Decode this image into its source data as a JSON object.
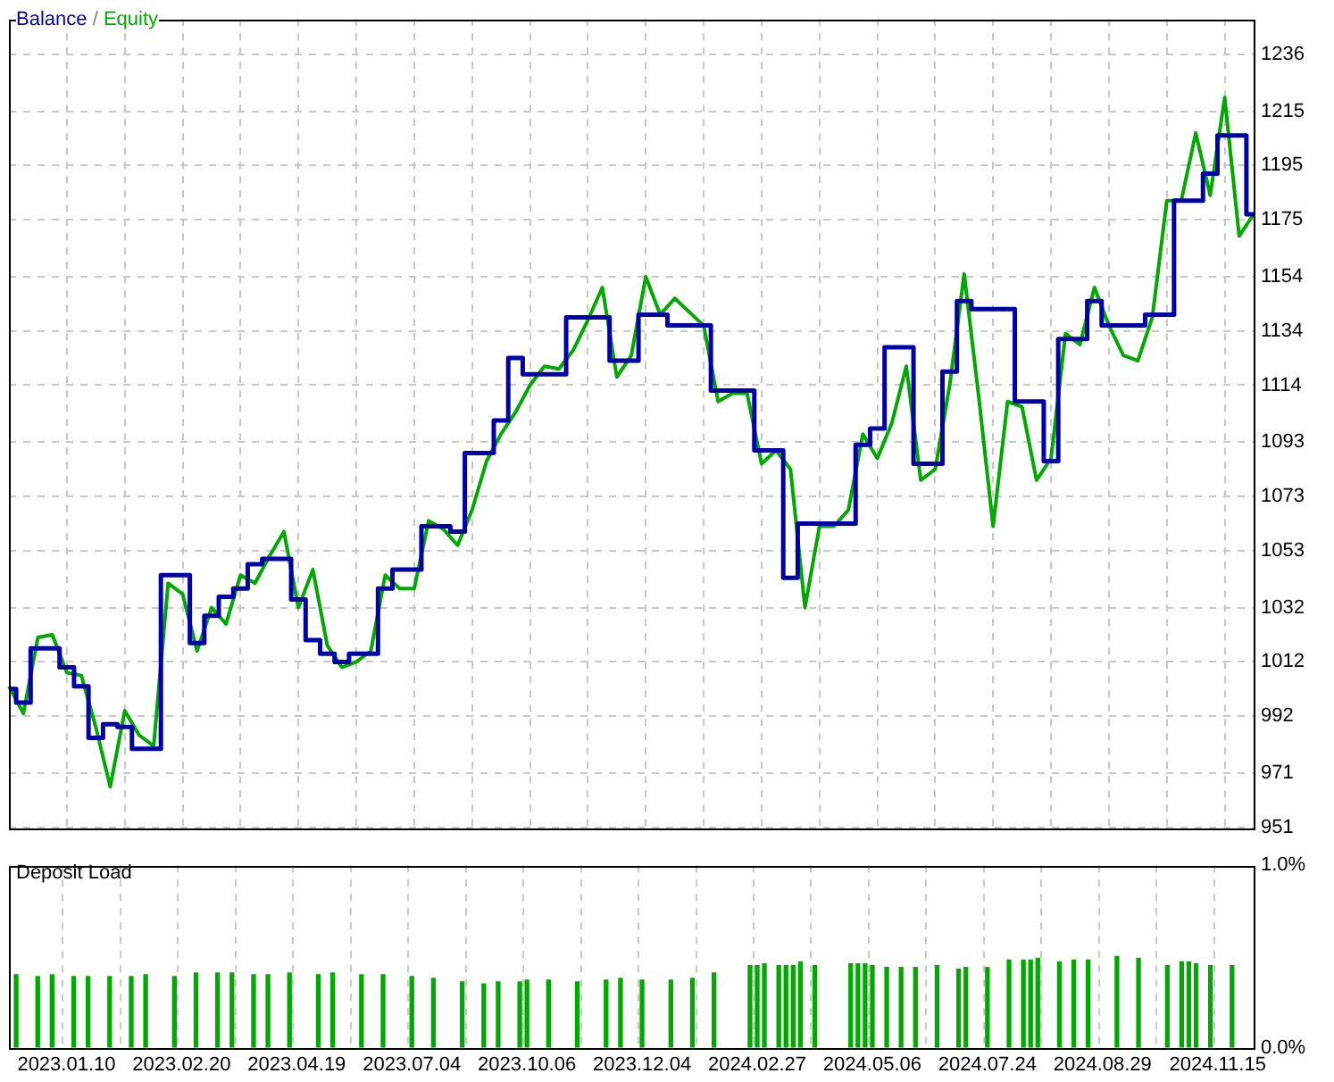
{
  "chart_data": [
    {
      "type": "line",
      "legend": "top left",
      "grid": true,
      "tick_labels": "y",
      "marker": "none",
      "annotations": [
        "/"
      ],
      "categories": [
        null,
        null,
        null,
        null,
        null,
        null,
        null,
        null,
        null,
        null,
        null,
        null,
        null,
        null,
        null,
        null,
        null,
        null,
        null,
        null,
        null,
        null,
        null,
        null,
        null,
        null,
        null,
        null,
        null,
        null,
        null,
        null,
        null,
        null,
        null,
        null,
        null,
        null,
        null,
        null,
        null,
        null,
        null,
        null,
        null,
        null,
        null,
        null,
        null,
        null,
        null,
        null,
        null,
        null,
        null,
        null,
        null,
        null,
        null,
        null,
        null,
        null,
        null,
        null,
        null,
        null,
        null,
        null,
        null,
        null,
        null,
        null,
        null,
        null,
        null,
        null,
        null,
        null,
        null,
        null,
        null,
        null,
        null,
        null,
        null,
        null,
        null
      ],
      "ylim": [
        951,
        1249
      ],
      "yticks": [
        951,
        971,
        992,
        1012,
        1032,
        1053,
        1073,
        1093,
        1114,
        1134,
        1154,
        1175,
        1195,
        1215,
        1236
      ],
      "series": [
        {
          "name": "Balance",
          "type": "step",
          "color": "#0000a8",
          "values": [
            1002,
            997,
            1017,
            1017,
            1010,
            1003,
            984,
            989,
            988,
            980,
            980,
            1044,
            1044,
            1019,
            1029,
            1036,
            1039,
            1048,
            1050,
            1050,
            1035,
            1020,
            1015,
            1012,
            1015,
            1015,
            1039,
            1046,
            1046,
            1062,
            1062,
            1060,
            1089,
            1089,
            1101,
            1124,
            1118,
            1118,
            1118,
            1139,
            1139,
            1139,
            1123,
            1123,
            1140,
            1140,
            1136,
            1136,
            1136,
            1112,
            1112,
            1112,
            1090,
            1090,
            1043,
            1063,
            1063,
            1063,
            1063,
            1092,
            1098,
            1128,
            1128,
            1085,
            1085,
            1119,
            1145,
            1142,
            1142,
            1142,
            1108,
            1108,
            1086,
            1131,
            1131,
            1145,
            1136,
            1136,
            1136,
            1140,
            1140,
            1182,
            1182,
            1192,
            1206,
            1206,
            1177
          ]
        },
        {
          "name": "Equity",
          "type": "line",
          "color": "#00a800",
          "values": [
            1003,
            993,
            1021,
            1022,
            1008,
            1007,
            988,
            966,
            994,
            985,
            981,
            1041,
            1037,
            1016,
            1032,
            1026,
            1044,
            1041,
            1051,
            1060,
            1032,
            1046,
            1018,
            1010,
            1012,
            1016,
            1044,
            1039,
            1039,
            1064,
            1061,
            1055,
            1068,
            1086,
            1096,
            1104,
            1114,
            1121,
            1120,
            1127,
            1138,
            1150,
            1117,
            1125,
            1154,
            1140,
            1146,
            1141,
            1136,
            1108,
            1111,
            1111,
            1085,
            1090,
            1083,
            1032,
            1062,
            1062,
            1068,
            1096,
            1087,
            1100,
            1121,
            1079,
            1083,
            1114,
            1155,
            1110,
            1062,
            1108,
            1106,
            1079,
            1087,
            1133,
            1129,
            1150,
            1136,
            1125,
            1123,
            1139,
            1182,
            1182,
            1207,
            1184,
            1220,
            1169,
            1177
          ]
        }
      ]
    },
    {
      "type": "bar",
      "title": "Deposit Load",
      "grid": "x",
      "color": "#00a800",
      "categories": [
        null,
        null,
        null,
        null,
        null,
        null,
        null,
        null,
        "2023.01.10",
        null,
        null,
        null,
        null,
        null,
        null,
        null,
        null,
        null,
        null,
        null,
        null,
        null,
        null,
        null,
        "2023.02.20",
        null,
        null,
        null,
        null,
        null,
        null,
        null,
        null,
        null,
        null,
        null,
        null,
        null,
        null,
        null,
        "2023.04.19",
        null,
        null,
        null,
        null,
        null,
        null,
        null,
        null,
        null,
        null,
        null,
        null,
        null,
        null,
        null,
        "2023.07.04",
        null,
        null,
        null,
        null,
        null,
        null,
        null,
        null,
        null,
        null,
        null,
        null,
        null,
        null,
        null,
        "2023.10.06",
        null,
        null,
        null,
        null,
        null,
        null,
        null,
        null,
        null,
        null,
        null,
        null,
        null,
        null,
        null,
        "2023.12.04",
        null,
        null,
        null,
        null,
        null,
        null,
        null,
        null,
        null,
        null,
        null,
        null,
        null,
        null,
        null,
        "2024.02.27",
        null,
        null,
        null,
        null,
        null,
        null,
        null,
        null,
        null,
        null,
        null,
        null,
        null,
        null,
        null,
        "2024.05.06",
        null,
        null,
        null,
        null,
        null,
        null,
        null,
        null,
        null,
        null,
        null,
        null,
        null,
        null,
        null,
        "2024.07.24",
        null,
        null,
        null,
        null,
        null,
        null,
        null,
        null,
        null,
        null,
        null,
        null,
        null,
        null,
        null,
        "2024.08.29",
        null,
        null,
        null,
        null,
        null,
        null,
        null,
        null,
        null,
        null,
        null,
        null,
        null,
        null,
        null,
        "2024.11.15",
        null,
        null,
        null,
        null,
        null
      ],
      "values": [
        null,
        0.4,
        null,
        null,
        0.39,
        null,
        0.4,
        null,
        null,
        0.39,
        null,
        0.39,
        null,
        null,
        0.39,
        null,
        null,
        0.39,
        null,
        0.4,
        null,
        null,
        null,
        0.39,
        null,
        null,
        0.41,
        null,
        null,
        0.41,
        null,
        0.41,
        null,
        null,
        0.4,
        null,
        0.4,
        null,
        null,
        0.41,
        null,
        null,
        null,
        0.4,
        null,
        0.41,
        null,
        null,
        null,
        0.4,
        null,
        null,
        0.4,
        null,
        null,
        null,
        0.39,
        null,
        null,
        0.38,
        null,
        null,
        null,
        0.36,
        null,
        null,
        0.35,
        null,
        0.36,
        null,
        null,
        0.36,
        0.37,
        null,
        null,
        0.37,
        null,
        null,
        null,
        0.36,
        null,
        null,
        null,
        0.37,
        null,
        0.38,
        null,
        null,
        0.37,
        null,
        null,
        null,
        0.37,
        null,
        null,
        0.38,
        null,
        null,
        0.41,
        null,
        null,
        null,
        null,
        0.45,
        0.45,
        0.46,
        null,
        0.45,
        0.45,
        0.45,
        0.47,
        null,
        0.45,
        null,
        null,
        null,
        null,
        0.46,
        0.46,
        0.46,
        0.45,
        null,
        0.44,
        null,
        0.44,
        null,
        0.44,
        null,
        null,
        0.45,
        null,
        null,
        0.43,
        0.44,
        null,
        null,
        0.44,
        null,
        null,
        0.48,
        null,
        0.48,
        0.48,
        0.49,
        null,
        null,
        0.47,
        null,
        0.48,
        null,
        0.48,
        null,
        null,
        null,
        0.5,
        null,
        null,
        0.49,
        null,
        null,
        null,
        0.45,
        null,
        0.47,
        0.47,
        0.46,
        null,
        0.45,
        null,
        null,
        0.45,
        null,
        null,
        null
      ],
      "ylim": [
        0,
        1
      ],
      "yticks": [
        {
          "value": 0,
          "label": "0.0%"
        },
        {
          "value": 1,
          "label": "1.0%"
        }
      ]
    }
  ]
}
